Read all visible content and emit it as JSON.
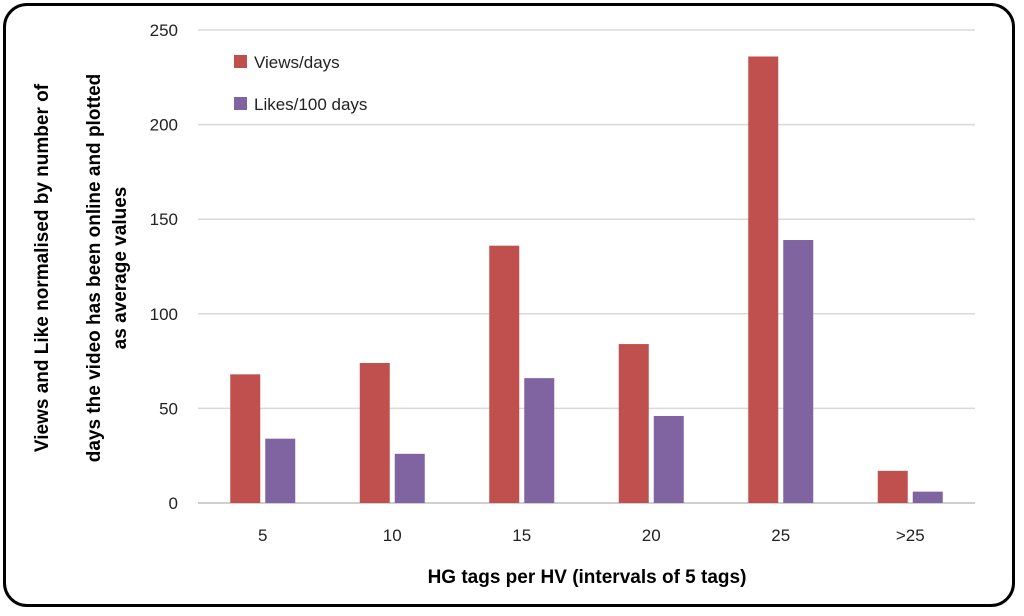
{
  "chart_data": {
    "type": "bar",
    "title": "",
    "categories": [
      "5",
      "10",
      "15",
      "20",
      "25",
      ">25"
    ],
    "series": [
      {
        "name": "Views/days",
        "color": "#c0504d",
        "values": [
          68,
          74,
          136,
          84,
          236,
          17
        ]
      },
      {
        "name": "Likes/100 days",
        "color": "#8064a2",
        "values": [
          34,
          26,
          66,
          46,
          139,
          6
        ]
      }
    ],
    "xlabel": "HG tags per HV (intervals of 5 tags)",
    "ylabel_lines": [
      "Views and Like normalised by number of",
      "days the video has been online and plotted",
      "as average values"
    ],
    "ylim": [
      0,
      250
    ],
    "yticks": [
      0,
      50,
      100,
      150,
      200,
      250
    ],
    "grid": true,
    "legend_position": "top-left"
  }
}
